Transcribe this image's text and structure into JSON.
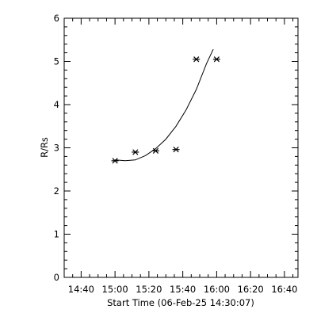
{
  "chart_data": {
    "type": "scatter",
    "title": "",
    "xlabel": "Start Time (06-Feb-25 14:30:07)",
    "ylabel": "R/Rs",
    "x_ticks": [
      "14:40",
      "15:00",
      "15:20",
      "15:40",
      "16:00",
      "16:20",
      "16:40"
    ],
    "y_ticks": [
      "0",
      "1",
      "2",
      "3",
      "4",
      "5",
      "6"
    ],
    "xlim": [
      "14:30",
      "16:48"
    ],
    "ylim": [
      0,
      6
    ],
    "grid": false,
    "series": [
      {
        "marker": "asterisk",
        "x": [
          "15:00",
          "15:12",
          "15:24",
          "15:36",
          "15:48",
          "16:00"
        ],
        "y": [
          2.7,
          2.9,
          2.93,
          2.96,
          5.05,
          5.05
        ]
      }
    ],
    "fit": {
      "style": "line",
      "x": [
        "15:00",
        "15:06",
        "15:12",
        "15:18",
        "15:24",
        "15:30",
        "15:36",
        "15:42",
        "15:48",
        "15:54",
        "15:58"
      ],
      "y": [
        2.72,
        2.7,
        2.72,
        2.82,
        2.98,
        3.2,
        3.5,
        3.88,
        4.35,
        4.95,
        5.28
      ]
    },
    "colors": {
      "axis": "#000000",
      "marker": "#000000",
      "line": "#000000",
      "background": "#ffffff"
    }
  }
}
